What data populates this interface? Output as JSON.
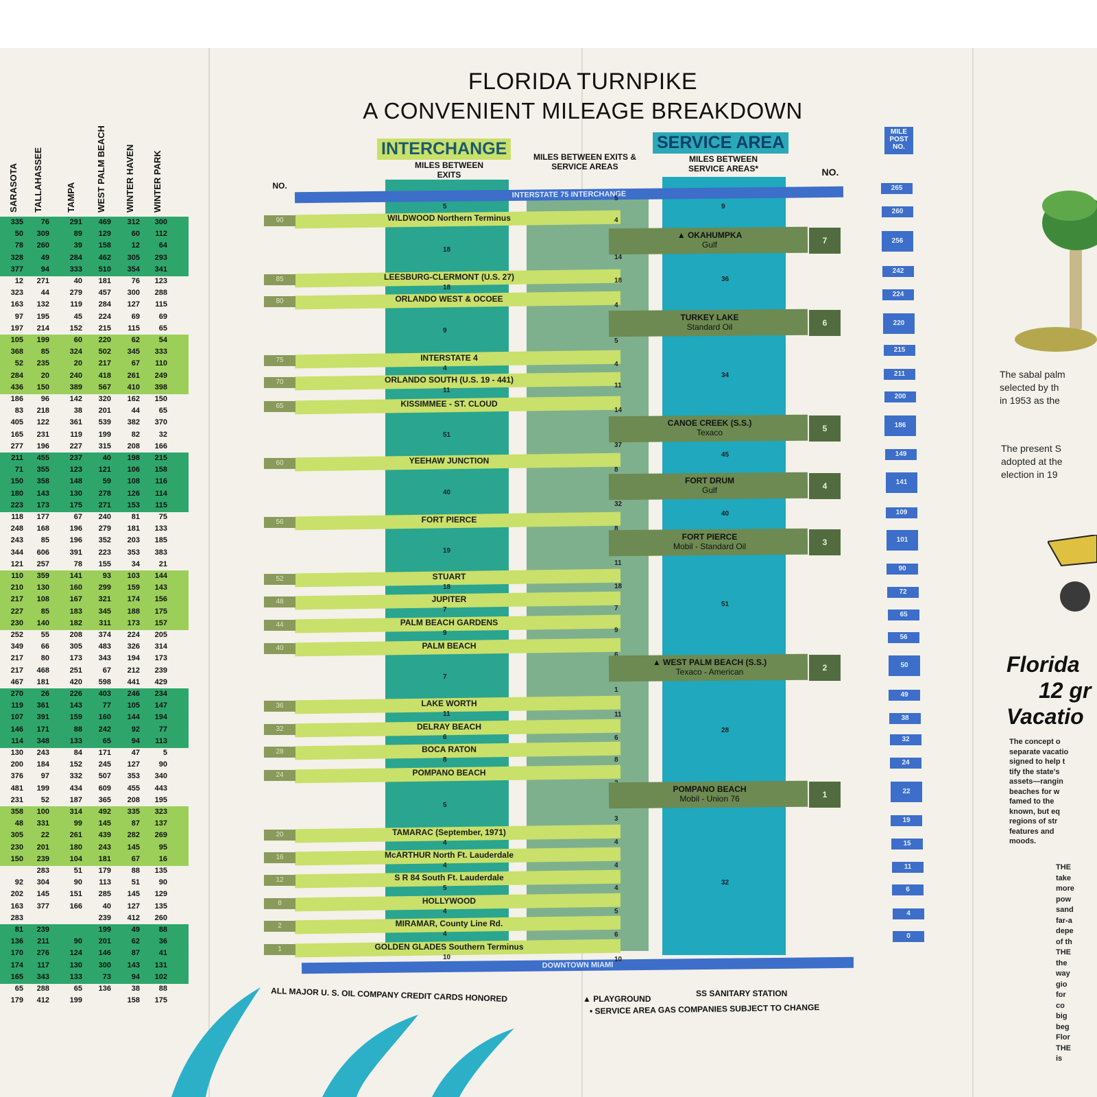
{
  "title_line1": "FLORIDA TURNPIKE",
  "title_line2": "A CONVENIENT MILEAGE BREAKDOWN",
  "headers": {
    "interchange": "INTERCHANGE",
    "service_area": "SERVICE AREA",
    "miles_between_exits": "MILES BETWEEN EXITS",
    "miles_between_exits_service": "MILES BETWEEN EXITS & SERVICE AREAS",
    "miles_between_service": "MILES BETWEEN SERVICE AREAS*",
    "no_left": "NO.",
    "no_right": "NO.",
    "mile_post": "MILE POST NO."
  },
  "top_band": "INTERSTATE 75 INTERCHANGE",
  "bottom_band": "DOWNTOWN MIAMI",
  "interchanges": [
    {
      "no": "90",
      "name": "WILDWOOD  Northern Terminus",
      "miles_after": "18"
    },
    {
      "no": "85",
      "name": "LEESBURG-CLERMONT (U.S. 27)",
      "miles_after": "18"
    },
    {
      "no": "80",
      "name": "ORLANDO WEST & OCOEE",
      "miles_after": "9"
    },
    {
      "no": "75",
      "name": "INTERSTATE 4",
      "miles_after": "4"
    },
    {
      "no": "70",
      "name": "ORLANDO SOUTH (U.S. 19 - 441)",
      "miles_after": "11"
    },
    {
      "no": "65",
      "name": "KISSIMMEE - ST. CLOUD",
      "miles_after": "51"
    },
    {
      "no": "60",
      "name": "YEEHAW JUNCTION",
      "miles_after": "40"
    },
    {
      "no": "56",
      "name": "FORT PIERCE",
      "miles_after": "19"
    },
    {
      "no": "52",
      "name": "STUART",
      "miles_after": "18"
    },
    {
      "no": "48",
      "name": "JUPITER",
      "miles_after": "7"
    },
    {
      "no": "44",
      "name": "PALM BEACH GARDENS",
      "miles_after": "9"
    },
    {
      "no": "40",
      "name": "PALM BEACH",
      "miles_after": "7"
    },
    {
      "no": "36",
      "name": "LAKE WORTH",
      "miles_after": "11"
    },
    {
      "no": "32",
      "name": "DELRAY BEACH",
      "miles_after": "6"
    },
    {
      "no": "28",
      "name": "BOCA RATON",
      "miles_after": "8"
    },
    {
      "no": "24",
      "name": "POMPANO BEACH",
      "miles_after": "5"
    },
    {
      "no": "20",
      "name": "TAMARAC (September, 1971)",
      "miles_after": "4"
    },
    {
      "no": "16",
      "name": "McARTHUR North Ft. Lauderdale",
      "miles_after": "4"
    },
    {
      "no": "12",
      "name": "S R 84 South Ft. Lauderdale",
      "miles_after": "5"
    },
    {
      "no": "8",
      "name": "HOLLYWOOD",
      "miles_after": "4"
    },
    {
      "no": "2",
      "name": "MIRAMAR, County Line Rd.",
      "miles_after": "4"
    },
    {
      "no": "1",
      "name": "GOLDEN GLADES  Southern Terminus",
      "miles_after": "10"
    }
  ],
  "first_exit_miles": "5",
  "exit_service_miles": [
    "5",
    "4",
    "14",
    "18",
    "4",
    "5",
    "4",
    "11",
    "14",
    "37",
    "8",
    "32",
    "8",
    "11",
    "18",
    "7",
    "9",
    "6",
    "1",
    "11",
    "6",
    "8",
    "2",
    "3",
    "4",
    "4",
    "4",
    "5",
    "6",
    "10"
  ],
  "service_areas": [
    {
      "no": "7",
      "name": "OKAHUMPKA",
      "company": "Gulf",
      "playground": true
    },
    {
      "no": "6",
      "name": "TURKEY LAKE",
      "company": "Standard Oil",
      "playground": false
    },
    {
      "no": "5",
      "name": "CANOE CREEK (S.S.)",
      "company": "Texaco",
      "playground": false
    },
    {
      "no": "4",
      "name": "FORT DRUM",
      "company": "Gulf",
      "playground": false
    },
    {
      "no": "3",
      "name": "FORT PIERCE",
      "company": "Mobil - Standard Oil",
      "playground": false
    },
    {
      "no": "2",
      "name": "WEST PALM BEACH (S.S.)",
      "company": "Texaco - American",
      "playground": true
    },
    {
      "no": "1",
      "name": "POMPANO BEACH",
      "company": "Mobil - Union 76",
      "playground": false
    }
  ],
  "service_miles": [
    "9",
    "36",
    "34",
    "45",
    "40",
    "51",
    "28",
    "32"
  ],
  "mile_posts": [
    "265",
    "260",
    "256",
    "242",
    "224",
    "220",
    "215",
    "211",
    "200",
    "186",
    "149",
    "141",
    "109",
    "101",
    "90",
    "72",
    "65",
    "56",
    "50",
    "49",
    "38",
    "32",
    "24",
    "22",
    "19",
    "15",
    "11",
    "6",
    "4",
    "0"
  ],
  "footer": {
    "credit": "ALL MAJOR U. S. OIL COMPANY CREDIT CARDS HONORED",
    "playground": "PLAYGROUND",
    "sanitary": "SS SANITARY STATION",
    "gas_note": "• SERVICE AREA GAS COMPANIES SUBJECT TO CHANGE"
  },
  "table": {
    "columns": [
      "SARASOTA",
      "TALLAHASSEE",
      "TAMPA",
      "WEST PALM BEACH",
      "WINTER HAVEN",
      "WINTER PARK"
    ],
    "rows": [
      [
        "335",
        "76",
        "291",
        "469",
        "312",
        "300"
      ],
      [
        "50",
        "309",
        "89",
        "129",
        "60",
        "112"
      ],
      [
        "78",
        "260",
        "39",
        "158",
        "12",
        "64"
      ],
      [
        "328",
        "49",
        "284",
        "462",
        "305",
        "293"
      ],
      [
        "377",
        "94",
        "333",
        "510",
        "354",
        "341"
      ],
      [
        "12",
        "271",
        "40",
        "181",
        "76",
        "123"
      ],
      [
        "323",
        "44",
        "279",
        "457",
        "300",
        "288"
      ],
      [
        "163",
        "132",
        "119",
        "284",
        "127",
        "115"
      ],
      [
        "97",
        "195",
        "45",
        "224",
        "69",
        "69"
      ],
      [
        "197",
        "214",
        "152",
        "215",
        "115",
        "65"
      ],
      [
        "105",
        "199",
        "60",
        "220",
        "62",
        "54"
      ],
      [
        "368",
        "85",
        "324",
        "502",
        "345",
        "333"
      ],
      [
        "52",
        "235",
        "20",
        "217",
        "67",
        "110"
      ],
      [
        "284",
        "20",
        "240",
        "418",
        "261",
        "249"
      ],
      [
        "436",
        "150",
        "389",
        "567",
        "410",
        "398"
      ],
      [
        "186",
        "96",
        "142",
        "320",
        "162",
        "150"
      ],
      [
        "83",
        "218",
        "38",
        "201",
        "44",
        "65"
      ],
      [
        "405",
        "122",
        "361",
        "539",
        "382",
        "370"
      ],
      [
        "165",
        "231",
        "119",
        "199",
        "82",
        "32"
      ],
      [
        "277",
        "196",
        "227",
        "315",
        "208",
        "166"
      ],
      [
        "211",
        "455",
        "237",
        "40",
        "198",
        "215"
      ],
      [
        "71",
        "355",
        "123",
        "121",
        "106",
        "158"
      ],
      [
        "150",
        "358",
        "148",
        "59",
        "108",
        "116"
      ],
      [
        "180",
        "143",
        "130",
        "278",
        "126",
        "114"
      ],
      [
        "223",
        "173",
        "175",
        "271",
        "153",
        "115"
      ],
      [
        "118",
        "177",
        "67",
        "240",
        "81",
        "75"
      ],
      [
        "248",
        "168",
        "196",
        "279",
        "181",
        "133"
      ],
      [
        "243",
        "85",
        "196",
        "352",
        "203",
        "185"
      ],
      [
        "344",
        "606",
        "391",
        "223",
        "353",
        "383"
      ],
      [
        "121",
        "257",
        "78",
        "155",
        "34",
        "21"
      ],
      [
        "110",
        "359",
        "141",
        "93",
        "103",
        "144"
      ],
      [
        "210",
        "130",
        "160",
        "299",
        "159",
        "143"
      ],
      [
        "217",
        "108",
        "167",
        "321",
        "174",
        "156"
      ],
      [
        "227",
        "85",
        "183",
        "345",
        "188",
        "175"
      ],
      [
        "230",
        "140",
        "182",
        "311",
        "173",
        "157"
      ],
      [
        "252",
        "55",
        "208",
        "374",
        "224",
        "205"
      ],
      [
        "349",
        "66",
        "305",
        "483",
        "326",
        "314"
      ],
      [
        "217",
        "80",
        "173",
        "343",
        "194",
        "173"
      ],
      [
        "217",
        "468",
        "251",
        "67",
        "212",
        "239"
      ],
      [
        "467",
        "181",
        "420",
        "598",
        "441",
        "429"
      ],
      [
        "270",
        "26",
        "226",
        "403",
        "246",
        "234"
      ],
      [
        "119",
        "361",
        "143",
        "77",
        "105",
        "147"
      ],
      [
        "107",
        "391",
        "159",
        "160",
        "144",
        "194"
      ],
      [
        "146",
        "171",
        "88",
        "242",
        "92",
        "77"
      ],
      [
        "114",
        "348",
        "133",
        "65",
        "94",
        "113"
      ],
      [
        "130",
        "243",
        "84",
        "171",
        "47",
        "5"
      ],
      [
        "200",
        "184",
        "152",
        "245",
        "127",
        "90"
      ],
      [
        "376",
        "97",
        "332",
        "507",
        "353",
        "340"
      ],
      [
        "481",
        "199",
        "434",
        "609",
        "455",
        "443"
      ],
      [
        "231",
        "52",
        "187",
        "365",
        "208",
        "195"
      ],
      [
        "358",
        "100",
        "314",
        "492",
        "335",
        "323"
      ],
      [
        "48",
        "331",
        "99",
        "145",
        "87",
        "137"
      ],
      [
        "305",
        "22",
        "261",
        "439",
        "282",
        "269"
      ],
      [
        "230",
        "201",
        "180",
        "243",
        "145",
        "95"
      ],
      [
        "150",
        "239",
        "104",
        "181",
        "67",
        "16"
      ],
      [
        "",
        "283",
        "51",
        "179",
        "88",
        "135"
      ],
      [
        "92",
        "304",
        "90",
        "113",
        "51",
        "90"
      ],
      [
        "202",
        "145",
        "151",
        "285",
        "145",
        "129"
      ],
      [
        "163",
        "377",
        "166",
        "40",
        "127",
        "135"
      ],
      [
        "283",
        "",
        "",
        "239",
        "412",
        "260"
      ],
      [
        "81",
        "239",
        "",
        "199",
        "49",
        "88"
      ],
      [
        "136",
        "211",
        "90",
        "201",
        "62",
        "36"
      ],
      [
        "170",
        "276",
        "124",
        "146",
        "87",
        "41"
      ],
      [
        "174",
        "117",
        "130",
        "300",
        "143",
        "131"
      ],
      [
        "165",
        "343",
        "133",
        "73",
        "94",
        "102"
      ],
      [
        "65",
        "288",
        "65",
        "136",
        "38",
        "88"
      ],
      [
        "179",
        "412",
        "199",
        "",
        "158",
        "175"
      ]
    ]
  },
  "right_panel": {
    "palm_text": [
      "The sabal palm",
      "selected by th",
      "in 1953 as the"
    ],
    "seal_text": [
      "The present S",
      "adopted at the",
      "election in 19"
    ],
    "heading": [
      "Florida",
      "12 gr",
      "Vacatio"
    ],
    "body": [
      "The concept o",
      "separate vacatio",
      "signed to help t",
      "tify the state's",
      "assets—rangin",
      "beaches for w",
      "famed to the",
      "known, but eq",
      "regions of str",
      "features and",
      "moods."
    ],
    "body2": [
      "THE",
      "take",
      "more",
      "pow",
      "sand",
      "far-a",
      "depe",
      "of th",
      "THE",
      "the",
      "way",
      "gio",
      "for",
      "co",
      "big",
      "beg",
      "Flor",
      "THE",
      "is"
    ]
  }
}
